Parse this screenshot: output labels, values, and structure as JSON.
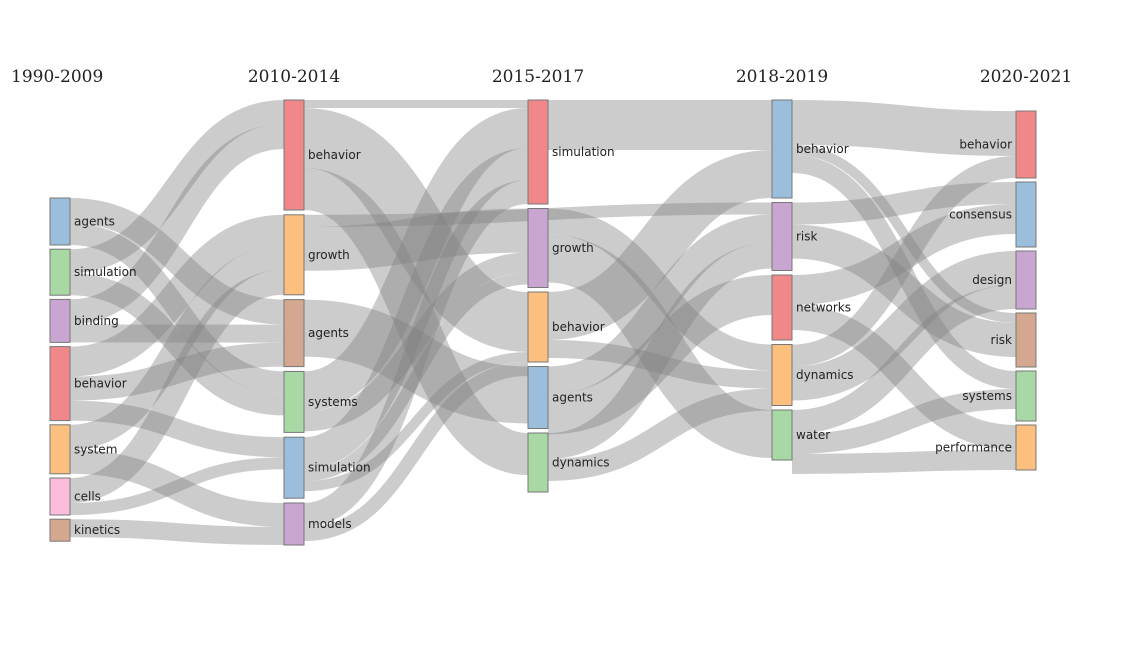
{
  "chart_data": {
    "type": "sankey",
    "periods": [
      "1990-2009",
      "2010-2014",
      "2015-2017",
      "2018-2019",
      "2020-2021"
    ],
    "columns": [
      [
        {
          "id": "a0",
          "label": "agents",
          "value": 47,
          "color": "#9bbedc"
        },
        {
          "id": "a1",
          "label": "simulation",
          "value": 46,
          "color": "#a8d8a4"
        },
        {
          "id": "a2",
          "label": "binding",
          "value": 43,
          "color": "#c9a6d2"
        },
        {
          "id": "a3",
          "label": "behavior",
          "value": 74,
          "color": "#f0888a"
        },
        {
          "id": "a4",
          "label": "system",
          "value": 49,
          "color": "#fdbf7d"
        },
        {
          "id": "a5",
          "label": "cells",
          "value": 37,
          "color": "#fcbcdc"
        },
        {
          "id": "a6",
          "label": "kinetics",
          "value": 22,
          "color": "#d4a890"
        }
      ],
      [
        {
          "id": "b0",
          "label": "behavior",
          "value": 110,
          "color": "#f0888a"
        },
        {
          "id": "b1",
          "label": "growth",
          "value": 80,
          "color": "#fdbf7d"
        },
        {
          "id": "b2",
          "label": "agents",
          "value": 67,
          "color": "#d4a890"
        },
        {
          "id": "b3",
          "label": "systems",
          "value": 61,
          "color": "#a8d8a4"
        },
        {
          "id": "b4",
          "label": "simulation",
          "value": 61,
          "color": "#9bbedc"
        },
        {
          "id": "b5",
          "label": "models",
          "value": 42,
          "color": "#c9a6d2"
        }
      ],
      [
        {
          "id": "c0",
          "label": "simulation",
          "value": 104,
          "color": "#f0888a"
        },
        {
          "id": "c1",
          "label": "growth",
          "value": 79,
          "color": "#c9a6d2"
        },
        {
          "id": "c2",
          "label": "behavior",
          "value": 70,
          "color": "#fdbf7d"
        },
        {
          "id": "c3",
          "label": "agents",
          "value": 62,
          "color": "#9bbedc"
        },
        {
          "id": "c4",
          "label": "dynamics",
          "value": 59,
          "color": "#a8d8a4"
        }
      ],
      [
        {
          "id": "d0",
          "label": "behavior",
          "value": 98,
          "color": "#9bbedc"
        },
        {
          "id": "d1",
          "label": "risk",
          "value": 68,
          "color": "#c9a6d2"
        },
        {
          "id": "d2",
          "label": "networks",
          "value": 65,
          "color": "#f0888a"
        },
        {
          "id": "d3",
          "label": "dynamics",
          "value": 61,
          "color": "#fdbf7d"
        },
        {
          "id": "d4",
          "label": "water",
          "value": 50,
          "color": "#a8d8a4"
        }
      ],
      [
        {
          "id": "e0",
          "label": "behavior",
          "value": 67,
          "color": "#f0888a"
        },
        {
          "id": "e1",
          "label": "consensus",
          "value": 65,
          "color": "#9bbedc"
        },
        {
          "id": "e2",
          "label": "design",
          "value": 58,
          "color": "#c9a6d2"
        },
        {
          "id": "e3",
          "label": "risk",
          "value": 54,
          "color": "#d4a890"
        },
        {
          "id": "e4",
          "label": "systems",
          "value": 50,
          "color": "#a8d8a4"
        },
        {
          "id": "e5",
          "label": "performance",
          "value": 45,
          "color": "#fdbf7d"
        }
      ]
    ],
    "links": [
      {
        "source": "a0",
        "target": "b2",
        "value": 25
      },
      {
        "source": "a0",
        "target": "b3",
        "value": 22
      },
      {
        "source": "a1",
        "target": "b0",
        "value": 24
      },
      {
        "source": "a1",
        "target": "b3",
        "value": 22
      },
      {
        "source": "a2",
        "target": "b0",
        "value": 25
      },
      {
        "source": "a2",
        "target": "b2",
        "value": 18
      },
      {
        "source": "a3",
        "target": "b1",
        "value": 30
      },
      {
        "source": "a3",
        "target": "b2",
        "value": 24
      },
      {
        "source": "a3",
        "target": "b4",
        "value": 20
      },
      {
        "source": "a4",
        "target": "b1",
        "value": 25
      },
      {
        "source": "a4",
        "target": "b5",
        "value": 24
      },
      {
        "source": "a5",
        "target": "b1",
        "value": 25
      },
      {
        "source": "a5",
        "target": "b4",
        "value": 12
      },
      {
        "source": "a6",
        "target": "b5",
        "value": 18
      },
      {
        "source": "b0",
        "target": "c0",
        "value": 8
      },
      {
        "source": "b0",
        "target": "c2",
        "value": 60
      },
      {
        "source": "b0",
        "target": "c4",
        "value": 42
      },
      {
        "source": "b1",
        "target": "c1",
        "value": 44
      },
      {
        "source": "b1",
        "target": "d1",
        "value": 12
      },
      {
        "source": "b2",
        "target": "c3",
        "value": 57
      },
      {
        "source": "b3",
        "target": "c0",
        "value": 40
      },
      {
        "source": "b3",
        "target": "c1",
        "value": 20
      },
      {
        "source": "b4",
        "target": "c0",
        "value": 32
      },
      {
        "source": "b4",
        "target": "c1",
        "value": 12
      },
      {
        "source": "b4",
        "target": "c2",
        "value": 10
      },
      {
        "source": "b5",
        "target": "c0",
        "value": 24
      },
      {
        "source": "b5",
        "target": "c2",
        "value": 14
      },
      {
        "source": "c0",
        "target": "d0",
        "value": 50
      },
      {
        "source": "c1",
        "target": "d3",
        "value": 26
      },
      {
        "source": "c1",
        "target": "d4",
        "value": 48
      },
      {
        "source": "c2",
        "target": "d0",
        "value": 48
      },
      {
        "source": "c2",
        "target": "d3",
        "value": 18
      },
      {
        "source": "c3",
        "target": "d1",
        "value": 28
      },
      {
        "source": "c3",
        "target": "d2",
        "value": 40
      },
      {
        "source": "c4",
        "target": "d1",
        "value": 26
      },
      {
        "source": "c4",
        "target": "d3",
        "value": 22
      },
      {
        "source": "d0",
        "target": "e0",
        "value": 45
      },
      {
        "source": "d0",
        "target": "e3",
        "value": 10
      },
      {
        "source": "d0",
        "target": "e4",
        "value": 18
      },
      {
        "source": "d1",
        "target": "e1",
        "value": 22
      },
      {
        "source": "d1",
        "target": "e3",
        "value": 34
      },
      {
        "source": "d2",
        "target": "e1",
        "value": 30
      },
      {
        "source": "d2",
        "target": "e5",
        "value": 25
      },
      {
        "source": "d3",
        "target": "e0",
        "value": 22
      },
      {
        "source": "d3",
        "target": "e2",
        "value": 34
      },
      {
        "source": "d4",
        "target": "e2",
        "value": 24
      },
      {
        "source": "d4",
        "target": "e4",
        "value": 20
      },
      {
        "source": "d4",
        "target": "e5",
        "value": 20
      }
    ]
  }
}
